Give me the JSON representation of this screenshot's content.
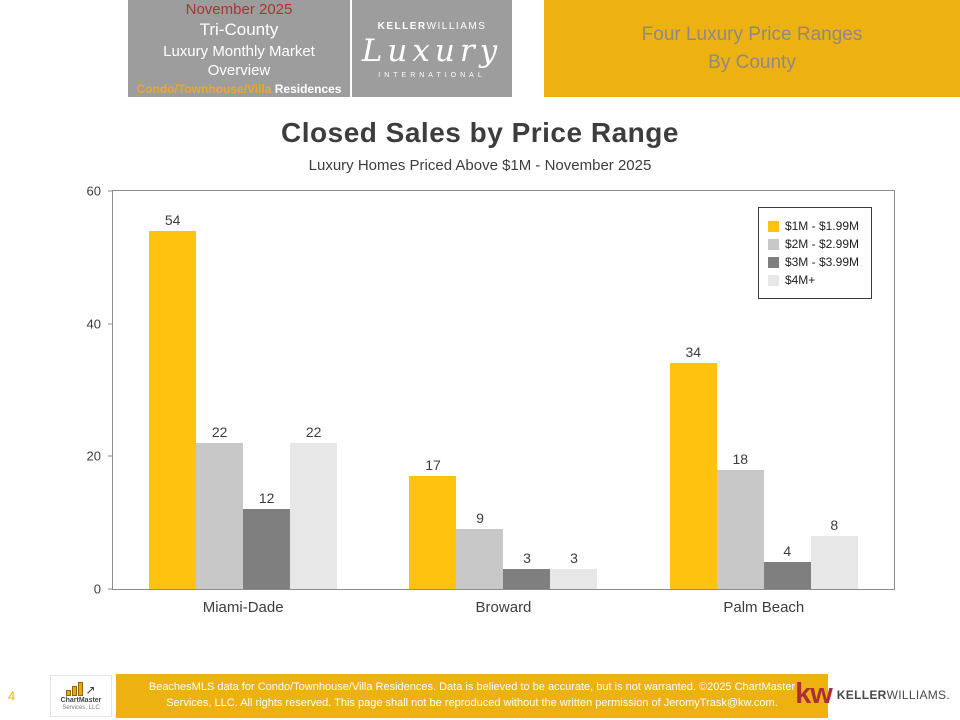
{
  "header": {
    "date": "November 2025",
    "region": "Tri-County",
    "title": "Luxury Monthly Market Overview",
    "residence_highlight": "Condo/Townhouse/Villa",
    "residence_rest": " Residences",
    "logo": {
      "brand_bold": "KELLER",
      "brand_rest": "WILLIAMS",
      "script": "Luxury",
      "tagline": "INTERNATIONAL"
    },
    "banner": {
      "line1": "Four Luxury Price Ranges",
      "line2": "By County"
    }
  },
  "chart_data": {
    "type": "bar",
    "title": "Closed Sales by Price Range",
    "subtitle": "Luxury Homes Priced Above $1M - November 2025",
    "categories": [
      "Miami-Dade",
      "Broward",
      "Palm Beach"
    ],
    "series": [
      {
        "name": "$1M - $1.99M",
        "color": "#FFC20E",
        "values": [
          54,
          17,
          34
        ]
      },
      {
        "name": "$2M - $2.99M",
        "color": "#C8C8C8",
        "values": [
          22,
          9,
          18
        ]
      },
      {
        "name": "$3M - $3.99M",
        "color": "#7F7F7F",
        "values": [
          12,
          3,
          4
        ]
      },
      {
        "name": "$4M+",
        "color": "#E7E7E7",
        "values": [
          22,
          3,
          8
        ]
      }
    ],
    "ylim": [
      0,
      60
    ],
    "yticks": [
      0,
      20,
      40,
      60
    ],
    "legend_position": "top-right",
    "grid": false
  },
  "footer": {
    "page_number": "4",
    "chartmaster": {
      "line1": "ChartMaster",
      "line2": "Services, LLC"
    },
    "disclaimer_line1": "BeachesMLS data for Condo/Townhouse/Villa Residences.  Data is believed to be accurate, but is not warranted.   ©2025  ChartMaster",
    "disclaimer_line2": "Services,  LLC.  All rights reserved. This page shall not be reproduced without the written permission of JeromyTrask@kw.com.",
    "kw": {
      "mark": "kw",
      "brand_bold": "KELLER",
      "brand_rest": "WILLIAMS."
    }
  },
  "colors": {
    "gold": "#EDB111",
    "header_gray": "#9D9D9D",
    "date_red": "#A5382C",
    "residence_orange": "#EFA727",
    "kw_red": "#AE2E36"
  }
}
